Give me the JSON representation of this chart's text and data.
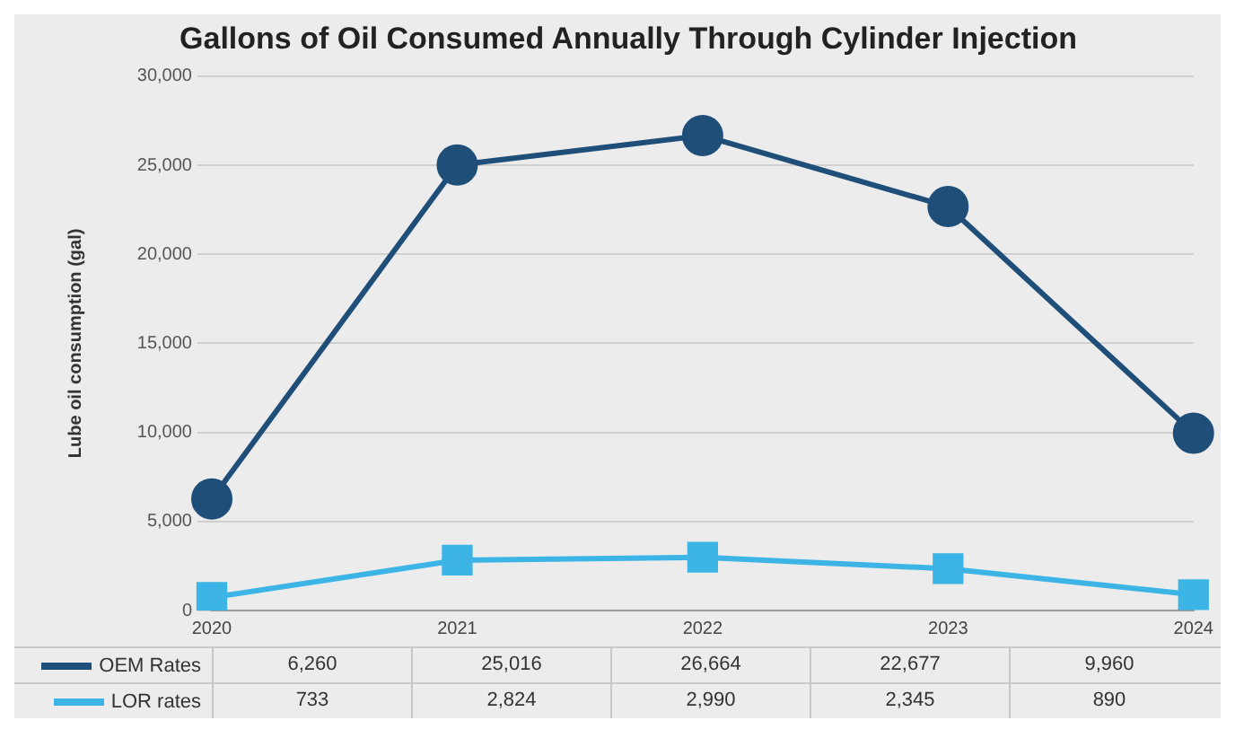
{
  "chart_data": {
    "type": "line",
    "title": "Gallons of Oil Consumed Annually Through Cylinder Injection",
    "ylabel": "Lube oil consumption (gal)",
    "categories": [
      "2020",
      "2021",
      "2022",
      "2023",
      "2024"
    ],
    "series": [
      {
        "name": "OEM Rates",
        "color": "#1f4e79",
        "marker": "circle",
        "values": [
          6260,
          25016,
          26664,
          22677,
          9960
        ],
        "value_labels": [
          "6,260",
          "25,016",
          "26,664",
          "22,677",
          "9,960"
        ]
      },
      {
        "name": "LOR rates",
        "color": "#3cb4e6",
        "marker": "square",
        "values": [
          733,
          2824,
          2990,
          2345,
          890
        ],
        "value_labels": [
          "733",
          "2,824",
          "2,990",
          "2,345",
          "890"
        ]
      }
    ],
    "ylim": [
      0,
      30000
    ],
    "yticks": [
      {
        "value": 0,
        "label": "0"
      },
      {
        "value": 5000,
        "label": "5,000"
      },
      {
        "value": 10000,
        "label": "10,000"
      },
      {
        "value": 15000,
        "label": "15,000"
      },
      {
        "value": 20000,
        "label": "20,000"
      },
      {
        "value": 25000,
        "label": "25,000"
      },
      {
        "value": 30000,
        "label": "30,000"
      }
    ],
    "grid": "y",
    "legend": "bottom",
    "line_style": "solid"
  }
}
